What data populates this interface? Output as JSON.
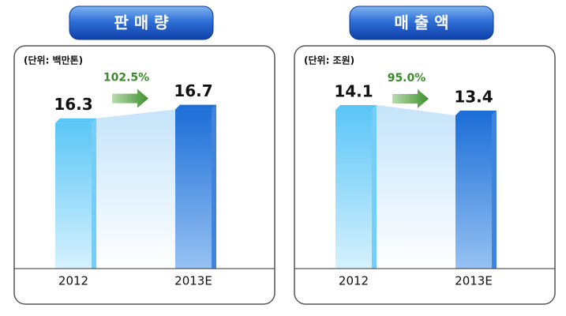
{
  "chart_data": [
    {
      "type": "bar",
      "title": "판 매 량",
      "subtitle": "(단위: 백만톤)",
      "categories": [
        "2012",
        "2013E"
      ],
      "values": [
        16.3,
        16.7
      ],
      "colors": [
        "#5cc6f6",
        "#1e6fd8"
      ],
      "ylim": [
        12,
        17.6
      ],
      "annotation": "102.5%"
    },
    {
      "type": "bar",
      "title": "매 출 액",
      "subtitle": "(단위: 조원)",
      "categories": [
        "2012",
        "2013E"
      ],
      "values": [
        14.1,
        13.4
      ],
      "colors": [
        "#5cc6f6",
        "#1e6fd8"
      ],
      "ylim": [
        -6,
        18
      ],
      "annotation": "95.0%"
    }
  ]
}
